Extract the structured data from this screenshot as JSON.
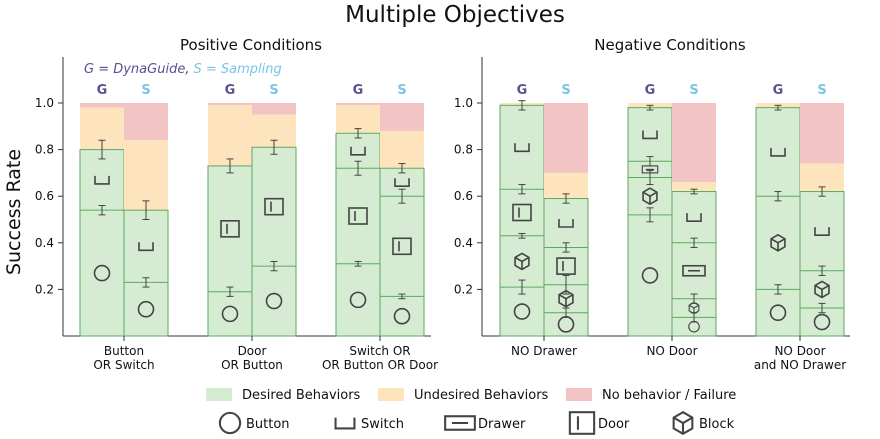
{
  "title": "Multiple Objectives",
  "ylabel": "Success Rate",
  "yticks": [
    "1.0",
    "0.8",
    "0.6",
    "0.4",
    "0.2"
  ],
  "note": {
    "g_part": "G = DynaGuide",
    "sep": ",",
    "s_part": "S = Sampling"
  },
  "bar_letters": {
    "g": "G",
    "s": "S"
  },
  "colors": {
    "desired": "#d5ebd2",
    "desired_edge": "#5daa5f",
    "undesired": "#fde4bd",
    "failure": "#f2c4c4",
    "g_letter": "#5b4f93",
    "s_letter": "#7cc4e4"
  },
  "legend": {
    "categories": [
      "Desired Behaviors",
      "Undesired Behaviors",
      "No behavior / Failure"
    ],
    "icons": [
      "Button",
      "Switch",
      "Drawer",
      "Door",
      "Block"
    ]
  },
  "chart_data": [
    {
      "type": "bar",
      "title": "Positive Conditions",
      "ylim": [
        0,
        1.1
      ],
      "categories": [
        "Button\nOR Switch",
        "Door\nOR Button",
        "Switch OR\nOR Button OR Door"
      ],
      "groups": [
        {
          "label": [
            "Button",
            "OR Switch"
          ],
          "bars": [
            {
              "letter": "G",
              "desired": 0.8,
              "undesired": 0.18,
              "failure": 0.02,
              "segments": [
                {
                  "obj": "button",
                  "top": 0.54,
                  "err": 0.02
                },
                {
                  "obj": "switch",
                  "top": 0.8,
                  "err": 0.04
                }
              ]
            },
            {
              "letter": "S",
              "desired": 0.54,
              "undesired": 0.3,
              "failure": 0.16,
              "segments": [
                {
                  "obj": "button",
                  "top": 0.23,
                  "err": 0.02
                },
                {
                  "obj": "switch",
                  "top": 0.54,
                  "err": 0.04
                }
              ]
            }
          ]
        },
        {
          "label": [
            "Door",
            "OR Button"
          ],
          "bars": [
            {
              "letter": "G",
              "desired": 0.73,
              "undesired": 0.26,
              "failure": 0.01,
              "segments": [
                {
                  "obj": "button",
                  "top": 0.19,
                  "err": 0.02
                },
                {
                  "obj": "door",
                  "top": 0.73,
                  "err": 0.03
                }
              ]
            },
            {
              "letter": "S",
              "desired": 0.81,
              "undesired": 0.14,
              "failure": 0.05,
              "segments": [
                {
                  "obj": "button",
                  "top": 0.3,
                  "err": 0.02
                },
                {
                  "obj": "door",
                  "top": 0.81,
                  "err": 0.03
                }
              ]
            }
          ]
        },
        {
          "label": [
            "Switch OR",
            "OR Button OR Door"
          ],
          "bars": [
            {
              "letter": "G",
              "desired": 0.87,
              "undesired": 0.12,
              "failure": 0.01,
              "segments": [
                {
                  "obj": "button",
                  "top": 0.31,
                  "err": 0.01
                },
                {
                  "obj": "door",
                  "top": 0.72,
                  "err": 0.03
                },
                {
                  "obj": "switch",
                  "top": 0.87,
                  "err": 0.02
                }
              ]
            },
            {
              "letter": "S",
              "desired": 0.72,
              "undesired": 0.16,
              "failure": 0.12,
              "segments": [
                {
                  "obj": "button",
                  "top": 0.17,
                  "err": 0.01
                },
                {
                  "obj": "door",
                  "top": 0.6,
                  "err": 0.03
                },
                {
                  "obj": "switch",
                  "top": 0.72,
                  "err": 0.02
                }
              ]
            }
          ]
        }
      ]
    },
    {
      "type": "bar",
      "title": "Negative Conditions",
      "ylim": [
        0,
        1.1
      ],
      "categories": [
        "NO Drawer",
        "NO Door",
        "NO Door\nand NO Drawer"
      ],
      "groups": [
        {
          "label": [
            "NO Drawer"
          ],
          "bars": [
            {
              "letter": "G",
              "desired": 0.99,
              "undesired": 0.01,
              "failure": 0.0,
              "segments": [
                {
                  "obj": "button",
                  "top": 0.21,
                  "err": 0.03
                },
                {
                  "obj": "block",
                  "top": 0.43,
                  "err": 0.01
                },
                {
                  "obj": "door",
                  "top": 0.63,
                  "err": 0.02
                },
                {
                  "obj": "switch",
                  "top": 0.99,
                  "err": 0.02
                }
              ]
            },
            {
              "letter": "S",
              "desired": 0.59,
              "undesired": 0.11,
              "failure": 0.3,
              "segments": [
                {
                  "obj": "button",
                  "top": 0.1,
                  "err": 0.02
                },
                {
                  "obj": "block",
                  "top": 0.22,
                  "err": 0.04
                },
                {
                  "obj": "door",
                  "top": 0.38,
                  "err": 0.02
                },
                {
                  "obj": "switch",
                  "top": 0.59,
                  "err": 0.02
                }
              ]
            }
          ]
        },
        {
          "label": [
            "NO Door"
          ],
          "bars": [
            {
              "letter": "G",
              "desired": 0.98,
              "undesired": 0.02,
              "failure": 0.0,
              "segments": [
                {
                  "obj": "button",
                  "top": 0.52,
                  "err": 0.03
                },
                {
                  "obj": "block",
                  "top": 0.68,
                  "err": 0.03
                },
                {
                  "obj": "drawer",
                  "top": 0.75,
                  "err": 0.02
                },
                {
                  "obj": "switch",
                  "top": 0.98,
                  "err": 0.01
                }
              ]
            },
            {
              "letter": "S",
              "desired": 0.62,
              "undesired": 0.04,
              "failure": 0.34,
              "segments": [
                {
                  "obj": "button",
                  "top": 0.08,
                  "err": 0.02
                },
                {
                  "obj": "block",
                  "top": 0.16,
                  "err": 0.02
                },
                {
                  "obj": "drawer",
                  "top": 0.4,
                  "err": 0.02
                },
                {
                  "obj": "switch",
                  "top": 0.62,
                  "err": 0.01
                }
              ]
            }
          ]
        },
        {
          "label": [
            "NO Door",
            "and NO Drawer"
          ],
          "bars": [
            {
              "letter": "G",
              "desired": 0.98,
              "undesired": 0.02,
              "failure": 0.0,
              "segments": [
                {
                  "obj": "button",
                  "top": 0.2,
                  "err": 0.02
                },
                {
                  "obj": "block",
                  "top": 0.6,
                  "err": 0.02
                },
                {
                  "obj": "switch",
                  "top": 0.98,
                  "err": 0.01
                }
              ]
            },
            {
              "letter": "S",
              "desired": 0.62,
              "undesired": 0.12,
              "failure": 0.26,
              "segments": [
                {
                  "obj": "button",
                  "top": 0.12,
                  "err": 0.02
                },
                {
                  "obj": "block",
                  "top": 0.28,
                  "err": 0.02
                },
                {
                  "obj": "switch",
                  "top": 0.62,
                  "err": 0.02
                }
              ]
            }
          ]
        }
      ]
    }
  ]
}
